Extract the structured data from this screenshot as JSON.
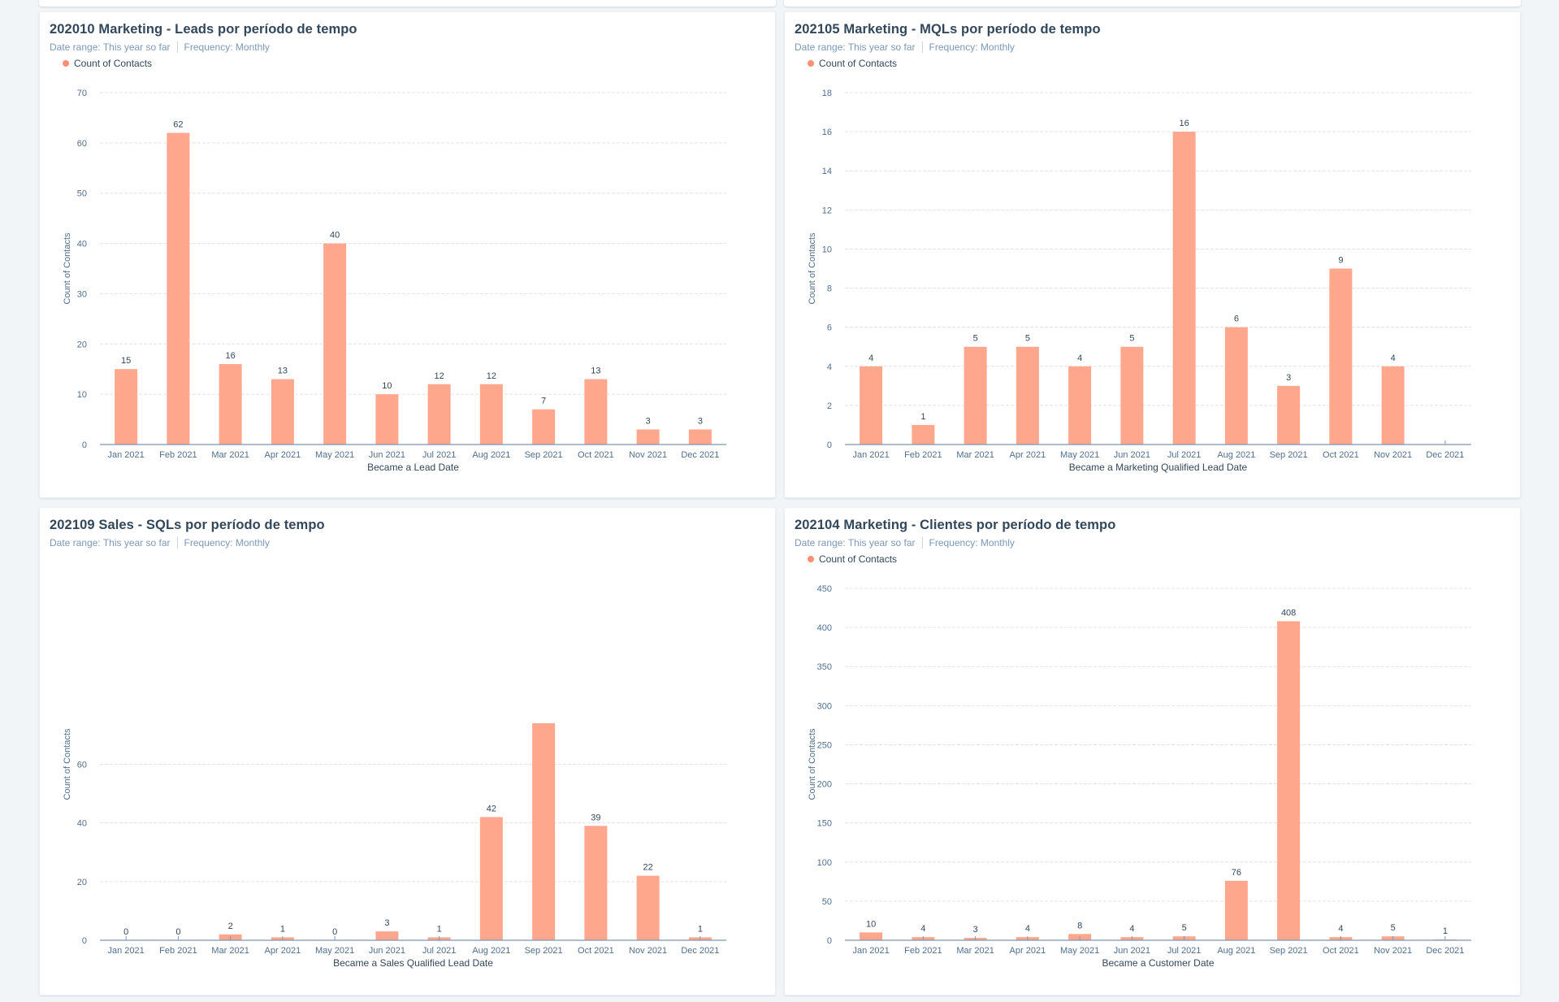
{
  "colors": {
    "bar": "#ffa78d",
    "legend_dot": "#ff8f73",
    "grid": "#dfe3eb",
    "axis": "#7c98b6",
    "label": "#33475b",
    "tick_label": "#516f90"
  },
  "cards": [
    {
      "title": "202010 Marketing - Leads por período de tempo",
      "date_range": "Date range: This year so far",
      "frequency": "Frequency: Monthly",
      "legend": "Count of Contacts",
      "show_legend": true
    },
    {
      "title": "202105 Marketing - MQLs por período de tempo",
      "date_range": "Date range: This year so far",
      "frequency": "Frequency: Monthly",
      "legend": "Count of Contacts",
      "show_legend": true
    },
    {
      "title": "202109 Sales - SQLs por período de tempo",
      "date_range": "Date range: This year so far",
      "frequency": "Frequency: Monthly",
      "legend": "",
      "show_legend": false
    },
    {
      "title": "202104 Marketing - Clientes por período de tempo",
      "date_range": "Date range: This year so far",
      "frequency": "Frequency: Monthly",
      "legend": "Count of Contacts",
      "show_legend": true
    }
  ],
  "chart_data": [
    {
      "type": "bar",
      "title": "202010 Marketing - Leads por período de tempo",
      "xlabel": "Became a Lead Date",
      "ylabel": "Count of Contacts",
      "categories": [
        "Jan 2021",
        "Feb 2021",
        "Mar 2021",
        "Apr 2021",
        "May 2021",
        "Jun 2021",
        "Jul 2021",
        "Aug 2021",
        "Sep 2021",
        "Oct 2021",
        "Nov 2021",
        "Dec 2021"
      ],
      "series": [
        {
          "name": "Count of Contacts",
          "values": [
            15,
            62,
            16,
            13,
            40,
            10,
            12,
            12,
            7,
            13,
            3,
            3
          ]
        }
      ],
      "ylim": [
        0,
        70
      ],
      "yticks": [
        0,
        10,
        20,
        30,
        40,
        50,
        60,
        70
      ],
      "data_labels": [
        "15",
        "62",
        "16",
        "13",
        "40",
        "10",
        "12",
        "12",
        "7",
        "13",
        "3",
        "3"
      ],
      "grid": true,
      "legend": "top-left"
    },
    {
      "type": "bar",
      "title": "202105 Marketing - MQLs por período de tempo",
      "xlabel": "Became a Marketing Qualified Lead Date",
      "ylabel": "Count of Contacts",
      "categories": [
        "Jan 2021",
        "Feb 2021",
        "Mar 2021",
        "Apr 2021",
        "May 2021",
        "Jun 2021",
        "Jul 2021",
        "Aug 2021",
        "Sep 2021",
        "Oct 2021",
        "Nov 2021",
        "Dec 2021"
      ],
      "series": [
        {
          "name": "Count of Contacts",
          "values": [
            4,
            1,
            5,
            5,
            4,
            5,
            16,
            6,
            3,
            9,
            4,
            0
          ]
        }
      ],
      "ylim": [
        0,
        18
      ],
      "yticks": [
        0,
        2,
        4,
        6,
        8,
        10,
        12,
        14,
        16,
        18
      ],
      "data_labels": [
        "4",
        "1",
        "5",
        "5",
        "4",
        "5",
        "16",
        "6",
        "3",
        "9",
        "4",
        ""
      ],
      "grid": true,
      "legend": "top-left"
    },
    {
      "type": "bar",
      "title": "202109 Sales - SQLs por período de tempo",
      "xlabel": "Became a Sales Qualified Lead Date",
      "ylabel": "Count of Contacts",
      "categories": [
        "Jan 2021",
        "Feb 2021",
        "Mar 2021",
        "Apr 2021",
        "May 2021",
        "Jun 2021",
        "Jul 2021",
        "Aug 2021",
        "Sep 2021",
        "Oct 2021",
        "Nov 2021",
        "Dec 2021"
      ],
      "series": [
        {
          "name": "Count of Contacts",
          "values": [
            0,
            0,
            2,
            1,
            0,
            3,
            1,
            42,
            74,
            39,
            22,
            1
          ]
        }
      ],
      "ylim": [
        0,
        120
      ],
      "yticks": [
        0,
        20,
        40,
        60
      ],
      "data_labels": [
        "0",
        "0",
        "2",
        "1",
        "0",
        "3",
        "1",
        "42",
        "",
        "39",
        "22",
        "1"
      ],
      "grid": true,
      "legend": "none"
    },
    {
      "type": "bar",
      "title": "202104 Marketing - Clientes por período de tempo",
      "xlabel": "Became a Customer Date",
      "ylabel": "Count of Contacts",
      "categories": [
        "Jan 2021",
        "Feb 2021",
        "Mar 2021",
        "Apr 2021",
        "May 2021",
        "Jun 2021",
        "Jul 2021",
        "Aug 2021",
        "Sep 2021",
        "Oct 2021",
        "Nov 2021",
        "Dec 2021"
      ],
      "series": [
        {
          "name": "Count of Contacts",
          "values": [
            10,
            4,
            3,
            4,
            8,
            4,
            5,
            76,
            408,
            4,
            5,
            1
          ]
        }
      ],
      "ylim": [
        0,
        450
      ],
      "yticks": [
        0,
        50,
        100,
        150,
        200,
        250,
        300,
        350,
        400,
        450
      ],
      "data_labels": [
        "10",
        "4",
        "3",
        "4",
        "8",
        "4",
        "5",
        "76",
        "408",
        "4",
        "5",
        "1"
      ],
      "grid": true,
      "legend": "top-left"
    }
  ]
}
